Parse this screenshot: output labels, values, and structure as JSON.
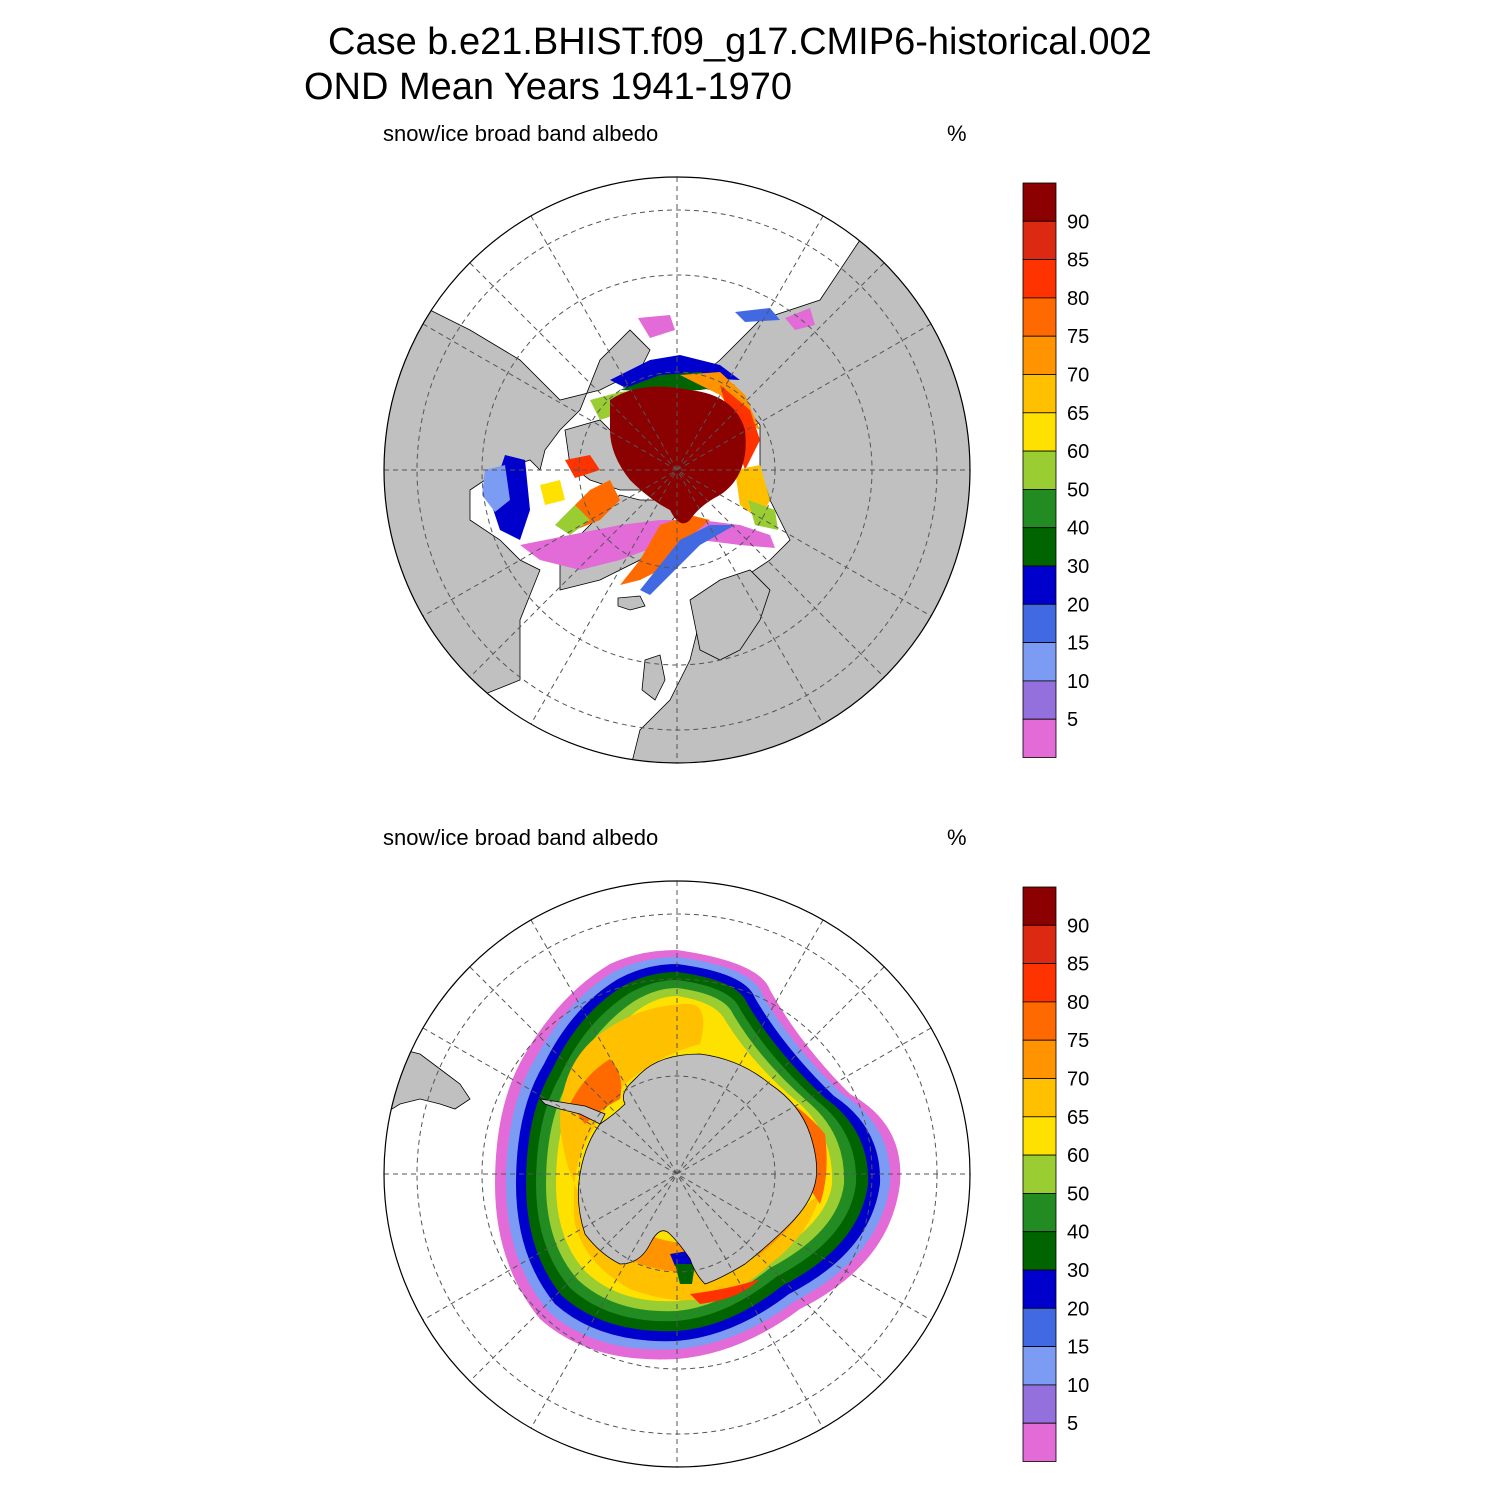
{
  "header": {
    "line1": "Case b.e21.BHIST.f09_g17.CMIP6-historical.002",
    "line2": "OND Mean   Years 1941-1970"
  },
  "panels": [
    {
      "id": "nh",
      "variable": "snow/ice broad band albedo",
      "units": "%"
    },
    {
      "id": "sh",
      "variable": "snow/ice broad band albedo",
      "units": "%"
    }
  ],
  "colorbar": {
    "labels": [
      "5",
      "10",
      "15",
      "20",
      "30",
      "40",
      "50",
      "60",
      "65",
      "70",
      "75",
      "80",
      "85",
      "90"
    ],
    "colors": [
      "#e26bd8",
      "#9370db",
      "#7b9cf2",
      "#4169e1",
      "#0000cd",
      "#006400",
      "#228b22",
      "#9acd32",
      "#ffe100",
      "#ffc000",
      "#ff9400",
      "#ff6a00",
      "#ff3300",
      "#dc2a12",
      "#8b0000"
    ]
  },
  "map_colors": {
    "land": "#c0c0c0",
    "ocean": "#ffffff",
    "grid": "#555555"
  }
}
